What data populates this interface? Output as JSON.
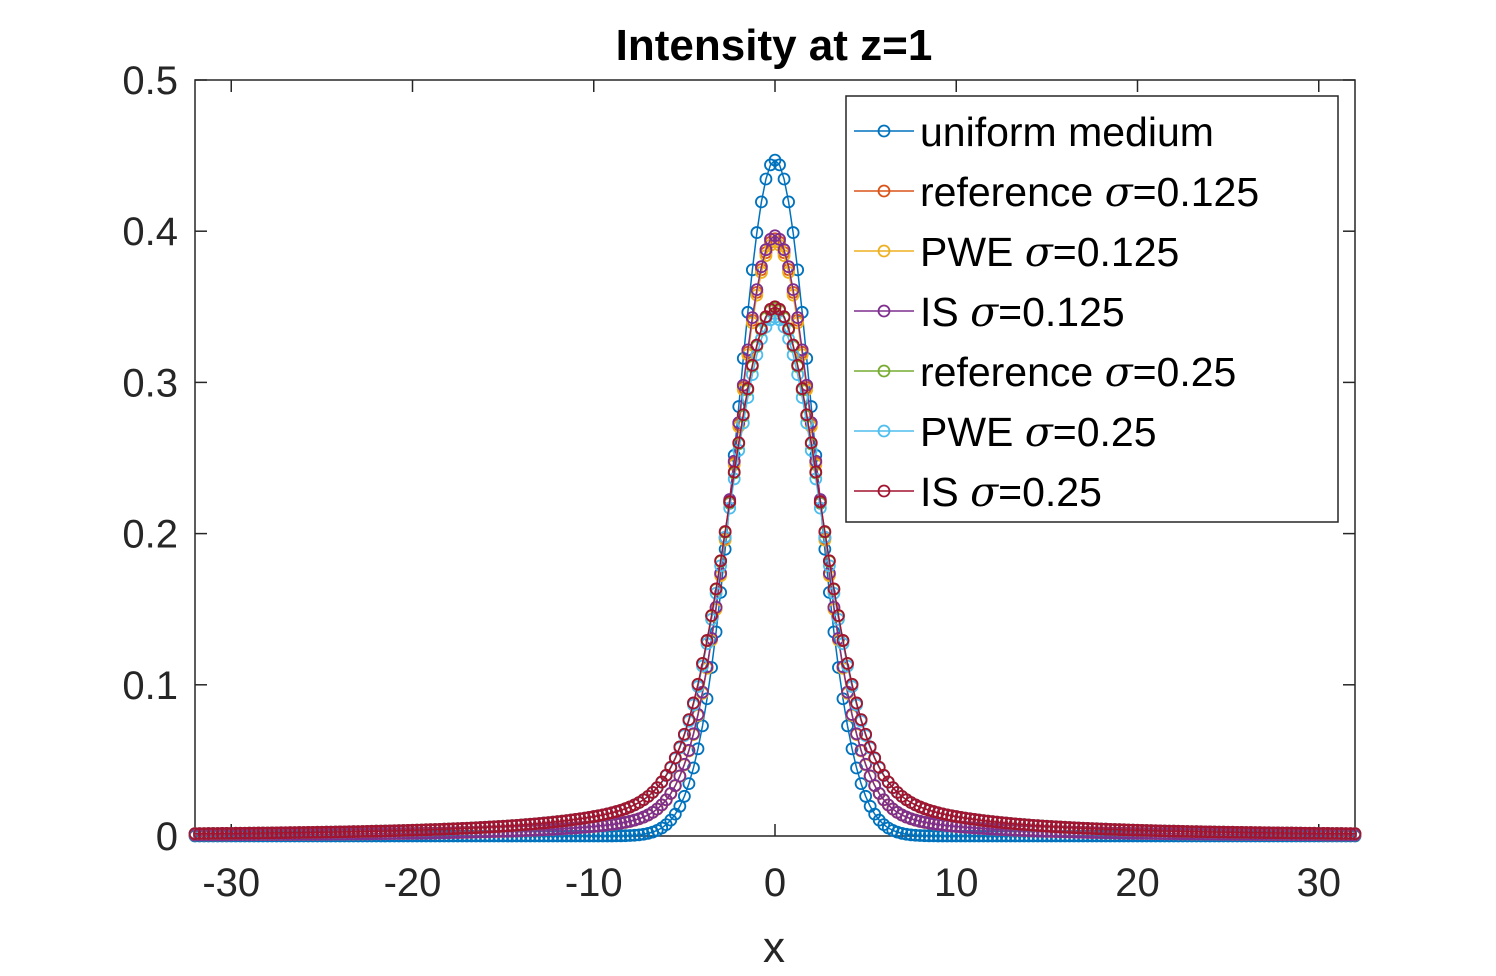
{
  "chart_data": {
    "type": "line",
    "title": "Intensity at z=1",
    "xlabel": "x",
    "ylabel": "",
    "xlim": [
      -32,
      32
    ],
    "ylim": [
      0,
      0.5
    ],
    "xticks": [
      -30,
      -20,
      -10,
      0,
      10,
      20,
      30
    ],
    "xtick_labels": [
      "-30",
      "-20",
      "-10",
      "0",
      "10",
      "20",
      "30"
    ],
    "yticks": [
      0,
      0.1,
      0.2,
      0.3,
      0.4,
      0.5
    ],
    "ytick_labels": [
      "0",
      "0.1",
      "0.2",
      "0.3",
      "0.4",
      "0.5"
    ],
    "marker": "circle",
    "legend_position": "top-right",
    "x_start": -32,
    "x_step": 0.25,
    "x_count": 257,
    "series": [
      {
        "name": "uniform medium",
        "legend_prefix": "uniform medium",
        "legend_sigma": "",
        "color": "#0072BD",
        "peak": 0.447,
        "shape": "gaussian",
        "width": 2.1,
        "tail_amp": 0
      },
      {
        "name": "reference σ=0.125",
        "legend_prefix": "reference ",
        "legend_sigma": "=0.125",
        "color": "#D95319",
        "peak": 0.395,
        "shape": "mixed",
        "width": 2.25,
        "tail_amp": 0.042,
        "tail_scale": 4.2
      },
      {
        "name": "PWE σ=0.125",
        "legend_prefix": "PWE ",
        "legend_sigma": "=0.125",
        "color": "#EDB120",
        "peak": 0.393,
        "shape": "mixed",
        "width": 2.25,
        "tail_amp": 0.042,
        "tail_scale": 4.2
      },
      {
        "name": "IS σ=0.125",
        "legend_prefix": "IS ",
        "legend_sigma": "=0.125",
        "color": "#7E2F8E",
        "peak": 0.397,
        "shape": "mixed",
        "width": 2.25,
        "tail_amp": 0.042,
        "tail_scale": 4.2
      },
      {
        "name": "reference σ=0.25",
        "legend_prefix": "reference ",
        "legend_sigma": "=0.25",
        "color": "#77AC30",
        "peak": 0.349,
        "shape": "mixed",
        "width": 2.45,
        "tail_amp": 0.06,
        "tail_scale": 5.2
      },
      {
        "name": "PWE σ=0.25",
        "legend_prefix": "PWE ",
        "legend_sigma": "=0.25",
        "color": "#4DBEEE",
        "peak": 0.343,
        "shape": "mixed",
        "width": 2.45,
        "tail_amp": 0.06,
        "tail_scale": 5.2
      },
      {
        "name": "IS σ=0.25",
        "legend_prefix": "IS ",
        "legend_sigma": "=0.25",
        "color": "#A2142F",
        "peak": 0.35,
        "shape": "mixed",
        "width": 2.45,
        "tail_amp": 0.06,
        "tail_scale": 5.2
      }
    ],
    "sigma_symbol": "σ"
  }
}
